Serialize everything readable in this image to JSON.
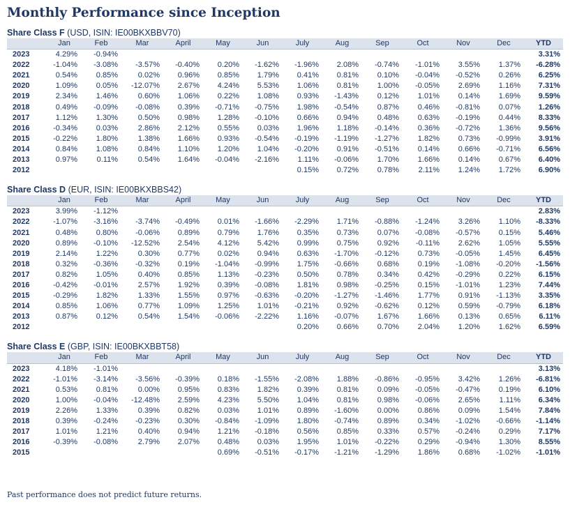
{
  "title": "Monthly Performance since Inception",
  "columns": [
    "Jan",
    "Feb",
    "Mar",
    "April",
    "May",
    "Jun",
    "July",
    "Aug",
    "Sep",
    "Oct",
    "Nov",
    "Dec",
    "YTD"
  ],
  "share_classes": [
    {
      "name": "Share Class F",
      "details": "(USD, ISIN: IE00BKXBBV70)",
      "rows": [
        {
          "year": "2023",
          "values": [
            "4.29%",
            "-0.94%",
            "",
            "",
            "",
            "",
            "",
            "",
            "",
            "",
            "",
            "",
            "3.31%"
          ]
        },
        {
          "year": "2022",
          "values": [
            "-1.04%",
            "-3.08%",
            "-3.57%",
            "-0.40%",
            "0.20%",
            "-1.62%",
            "-1.96%",
            "2.08%",
            "-0.74%",
            "-1.01%",
            "3.55%",
            "1.37%",
            "-6.28%"
          ]
        },
        {
          "year": "2021",
          "values": [
            "0.54%",
            "0.85%",
            "0.02%",
            "0.96%",
            "0.85%",
            "1.79%",
            "0.41%",
            "0.81%",
            "0.10%",
            "-0.04%",
            "-0.52%",
            "0.26%",
            "6.25%"
          ]
        },
        {
          "year": "2020",
          "values": [
            "1.09%",
            "0.05%",
            "-12.07%",
            "2.67%",
            "4.24%",
            "5.53%",
            "1.06%",
            "0.81%",
            "1.00%",
            "-0.05%",
            "2.69%",
            "1.16%",
            "7.31%"
          ]
        },
        {
          "year": "2019",
          "values": [
            "2.34%",
            "1.46%",
            "0.60%",
            "1.06%",
            "0.22%",
            "1.08%",
            "0.93%",
            "-1.43%",
            "0.12%",
            "1.01%",
            "0.14%",
            "1.69%",
            "9.59%"
          ]
        },
        {
          "year": "2018",
          "values": [
            "0.49%",
            "-0.09%",
            "-0.08%",
            "0.39%",
            "-0.71%",
            "-0.75%",
            "1.98%",
            "-0.54%",
            "0.87%",
            "0.46%",
            "-0.81%",
            "0.07%",
            "1.26%"
          ]
        },
        {
          "year": "2017",
          "values": [
            "1.12%",
            "1.30%",
            "0.50%",
            "0.98%",
            "1.28%",
            "-0.10%",
            "0.66%",
            "0.94%",
            "0.48%",
            "0.63%",
            "-0.19%",
            "0.44%",
            "8.33%"
          ]
        },
        {
          "year": "2016",
          "values": [
            "-0.34%",
            "0.03%",
            "2.86%",
            "2.12%",
            "0.55%",
            "0.03%",
            "1.96%",
            "1.18%",
            "-0.14%",
            "0.36%",
            "-0.72%",
            "1.36%",
            "9.56%"
          ]
        },
        {
          "year": "2015",
          "values": [
            "-0.22%",
            "1.80%",
            "1.38%",
            "1.66%",
            "0.93%",
            "-0.54%",
            "-0.19%",
            "-1.19%",
            "-1.27%",
            "1.82%",
            "0.73%",
            "-0.99%",
            "3.91%"
          ]
        },
        {
          "year": "2014",
          "values": [
            "0.84%",
            "1.08%",
            "0.84%",
            "1.10%",
            "1.20%",
            "1.04%",
            "-0.20%",
            "0.91%",
            "-0.51%",
            "0.14%",
            "0.66%",
            "-0.71%",
            "6.56%"
          ]
        },
        {
          "year": "2013",
          "values": [
            "0.97%",
            "0.11%",
            "0.54%",
            "1.64%",
            "-0.04%",
            "-2.16%",
            "1.11%",
            "-0.06%",
            "1.70%",
            "1.66%",
            "0.14%",
            "0.67%",
            "6.40%"
          ]
        },
        {
          "year": "2012",
          "values": [
            "",
            "",
            "",
            "",
            "",
            "",
            "0.15%",
            "0.72%",
            "0.78%",
            "2.11%",
            "1.24%",
            "1.72%",
            "6.90%"
          ]
        }
      ]
    },
    {
      "name": "Share Class D",
      "details": "(EUR, ISIN: IE00BKXBBS42)",
      "rows": [
        {
          "year": "2023",
          "values": [
            "3.99%",
            "-1.12%",
            "",
            "",
            "",
            "",
            "",
            "",
            "",
            "",
            "",
            "",
            "2.83%"
          ]
        },
        {
          "year": "2022",
          "values": [
            "-1.07%",
            "-3.16%",
            "-3.74%",
            "-0.49%",
            "0.01%",
            "-1.66%",
            "-2.29%",
            "1.71%",
            "-0.88%",
            "-1.24%",
            "3.26%",
            "1.10%",
            "-8.33%"
          ]
        },
        {
          "year": "2021",
          "values": [
            "0.48%",
            "0.80%",
            "-0.06%",
            "0.89%",
            "0.79%",
            "1.76%",
            "0.35%",
            "0.73%",
            "0.07%",
            "-0.08%",
            "-0.57%",
            "0.15%",
            "5.46%"
          ]
        },
        {
          "year": "2020",
          "values": [
            "0.89%",
            "-0.10%",
            "-12.52%",
            "2.54%",
            "4.12%",
            "5.42%",
            "0.99%",
            "0.75%",
            "0.92%",
            "-0.11%",
            "2.62%",
            "1.05%",
            "5.55%"
          ]
        },
        {
          "year": "2019",
          "values": [
            "2.14%",
            "1.22%",
            "0.30%",
            "0.77%",
            "0.02%",
            "0.94%",
            "0.63%",
            "-1.70%",
            "-0.12%",
            "0.73%",
            "-0.05%",
            "1.45%",
            "6.45%"
          ]
        },
        {
          "year": "2018",
          "values": [
            "0.32%",
            "-0.36%",
            "-0.32%",
            "0.19%",
            "-1.04%",
            "-0.99%",
            "1.75%",
            "-0.66%",
            "0.68%",
            "0.19%",
            "-1.08%",
            "-0.20%",
            "-1.56%"
          ]
        },
        {
          "year": "2017",
          "values": [
            "0.82%",
            "1.05%",
            "0.40%",
            "0.85%",
            "1.13%",
            "-0.23%",
            "0.50%",
            "0.78%",
            "0.34%",
            "0.42%",
            "-0.29%",
            "0.22%",
            "6.15%"
          ]
        },
        {
          "year": "2016",
          "values": [
            "-0.42%",
            "-0.01%",
            "2.57%",
            "1.92%",
            "0.39%",
            "-0.08%",
            "1.81%",
            "0.98%",
            "-0.25%",
            "0.15%",
            "-1.01%",
            "1.23%",
            "7.44%"
          ]
        },
        {
          "year": "2015",
          "values": [
            "-0.29%",
            "1.82%",
            "1.33%",
            "1.55%",
            "0.97%",
            "-0.63%",
            "-0.20%",
            "-1.27%",
            "-1.46%",
            "1.77%",
            "0.91%",
            "-1.13%",
            "3.35%"
          ]
        },
        {
          "year": "2014",
          "values": [
            "0.85%",
            "1.06%",
            "0.77%",
            "1.09%",
            "1.25%",
            "1.01%",
            "-0.21%",
            "0.92%",
            "-0.62%",
            "0.12%",
            "0.59%",
            "-0.79%",
            "6.18%"
          ]
        },
        {
          "year": "2013",
          "values": [
            "0.87%",
            "0.12%",
            "0.54%",
            "1.54%",
            "-0.06%",
            "-2.22%",
            "1.16%",
            "-0.07%",
            "1.67%",
            "1.66%",
            "0.13%",
            "0.65%",
            "6.11%"
          ]
        },
        {
          "year": "2012",
          "values": [
            "",
            "",
            "",
            "",
            "",
            "",
            "0.20%",
            "0.66%",
            "0.70%",
            "2.04%",
            "1.20%",
            "1.62%",
            "6.59%"
          ]
        }
      ]
    },
    {
      "name": "Share Class E",
      "details": "(GBP, ISIN: IE00BKXBBT58)",
      "rows": [
        {
          "year": "2023",
          "values": [
            "4.18%",
            "-1.01%",
            "",
            "",
            "",
            "",
            "",
            "",
            "",
            "",
            "",
            "",
            "3.13%"
          ]
        },
        {
          "year": "2022",
          "values": [
            "-1.01%",
            "-3.14%",
            "-3.56%",
            "-0.39%",
            "0.18%",
            "-1.55%",
            "-2.08%",
            "1.88%",
            "-0.86%",
            "-0.95%",
            "3.42%",
            "1.26%",
            "-6.81%"
          ]
        },
        {
          "year": "2021",
          "values": [
            "0.53%",
            "0.81%",
            "0.00%",
            "0.95%",
            "0.83%",
            "1.82%",
            "0.39%",
            "0.81%",
            "0.09%",
            "-0.05%",
            "-0.47%",
            "0.19%",
            "6.10%"
          ]
        },
        {
          "year": "2020",
          "values": [
            "1.00%",
            "-0.04%",
            "-12.48%",
            "2.59%",
            "4.23%",
            "5.50%",
            "1.04%",
            "0.81%",
            "0.98%",
            "-0.06%",
            "2.65%",
            "1.11%",
            "6.34%"
          ]
        },
        {
          "year": "2019",
          "values": [
            "2.26%",
            "1.33%",
            "0.39%",
            "0.82%",
            "0.03%",
            "1.01%",
            "0.89%",
            "-1.60%",
            "0.00%",
            "0.86%",
            "0.09%",
            "1.54%",
            "7.84%"
          ]
        },
        {
          "year": "2018",
          "values": [
            "0.39%",
            "-0.24%",
            "-0.23%",
            "0.30%",
            "-0.84%",
            "-1.09%",
            "1.80%",
            "-0.74%",
            "0.89%",
            "0.34%",
            "-1.02%",
            "-0.66%",
            "-1.14%"
          ]
        },
        {
          "year": "2017",
          "values": [
            "1.01%",
            "1.21%",
            "0.40%",
            "0.94%",
            "1.21%",
            "-0.18%",
            "0.56%",
            "0.85%",
            "0.33%",
            "0.57%",
            "-0.24%",
            "0.29%",
            "7.17%"
          ]
        },
        {
          "year": "2016",
          "values": [
            "-0.39%",
            "-0.08%",
            "2.79%",
            "2.07%",
            "0.48%",
            "0.03%",
            "1.95%",
            "1.01%",
            "-0.22%",
            "0.29%",
            "-0.94%",
            "1.30%",
            "8.55%"
          ]
        },
        {
          "year": "2015",
          "values": [
            "",
            "",
            "",
            "",
            "0.69%",
            "-0.51%",
            "-0.17%",
            "-1.21%",
            "-1.29%",
            "1.86%",
            "0.68%",
            "-1.02%",
            "-1.01%"
          ]
        }
      ]
    }
  ],
  "footnote": "Past performance does not predict future returns."
}
